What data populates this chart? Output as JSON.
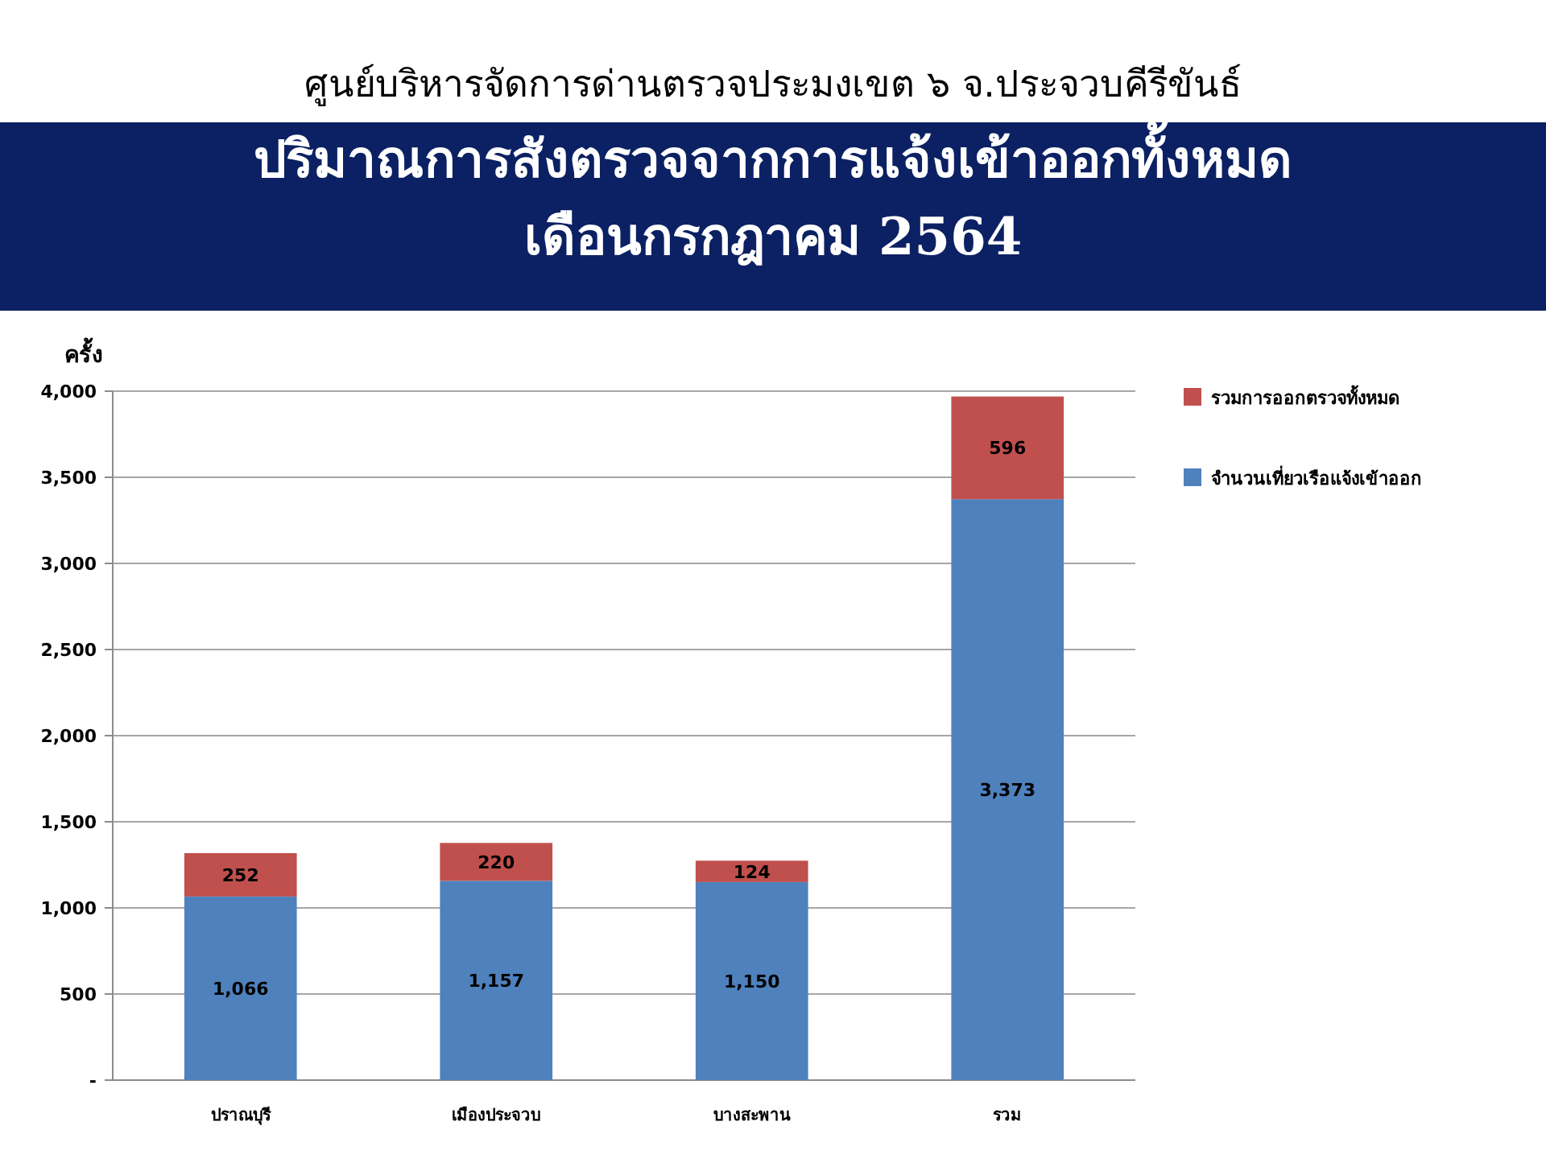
{
  "chart_data": {
    "type": "bar",
    "stacked": true,
    "title": "ปริมาณการสังตรวจจากการแจ้งเข้าออกทั้งหมด\nเดือนกรกฎาคม 2564",
    "subtitle": "ศูนย์บริหารจัดการด่านตรวจประมงเขต ๖ จ.ประจวบคีรีขันธ์",
    "ylabel": "ครั้ง",
    "categories": [
      "ปราณบุรี",
      "เมืองประจวบ",
      "บางสะพาน",
      "รวม"
    ],
    "series": [
      {
        "name": "จำนวนเที่ยวเรือแจ้งเข้าออก",
        "color": "#4f81bd",
        "values": [
          1066,
          1157,
          1150,
          3373
        ],
        "value_labels": [
          "1,066",
          "1,157",
          "1,150",
          "3,373"
        ]
      },
      {
        "name": "รวมการออกตรวจทั้งหมด",
        "color": "#c0504d",
        "values": [
          252,
          220,
          124,
          596
        ],
        "value_labels": [
          "252",
          "220",
          "124",
          "596"
        ]
      }
    ],
    "ylim": [
      0,
      4000
    ],
    "yticks": [
      {
        "value": 0,
        "label": "-"
      },
      500,
      {
        "value": 1000,
        "label": "1,000"
      },
      {
        "value": 1500,
        "label": "1,500"
      },
      {
        "value": 2000,
        "label": "2,000"
      },
      {
        "value": 2500,
        "label": "2,500"
      },
      {
        "value": 3000,
        "label": "3,000"
      },
      {
        "value": 3500,
        "label": "3,500"
      },
      {
        "value": 4000,
        "label": "4,000"
      }
    ],
    "grid": "y",
    "legend": "right"
  }
}
